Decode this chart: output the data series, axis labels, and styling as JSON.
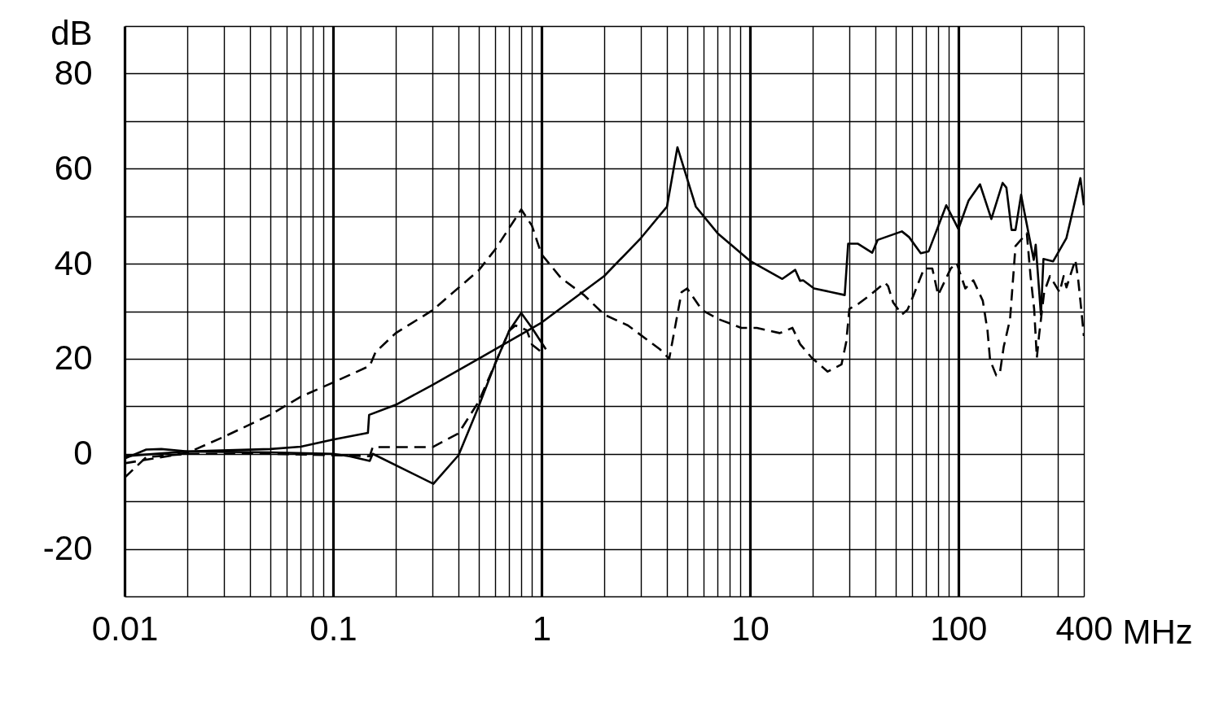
{
  "chart_data": {
    "type": "line",
    "ylabel": "dB",
    "xlabel": "MHz",
    "log": "x",
    "grid": true,
    "marker": "none",
    "xlim": [
      0.01,
      400
    ],
    "ylim": [
      -30,
      90
    ],
    "xticks": [
      0.01,
      {
        "value": 0.02,
        "label": null
      },
      {
        "value": 0.03,
        "label": null
      },
      {
        "value": 0.04,
        "label": null
      },
      {
        "value": 0.05,
        "label": null
      },
      {
        "value": 0.06,
        "label": null
      },
      {
        "value": 0.07,
        "label": null
      },
      {
        "value": 0.08,
        "label": null
      },
      {
        "value": 0.09,
        "label": null
      },
      0.1,
      {
        "value": 0.2,
        "label": null
      },
      {
        "value": 0.3,
        "label": null
      },
      {
        "value": 0.4,
        "label": null
      },
      {
        "value": 0.5,
        "label": null
      },
      {
        "value": 0.6,
        "label": null
      },
      {
        "value": 0.7,
        "label": null
      },
      {
        "value": 0.8,
        "label": null
      },
      {
        "value": 0.9,
        "label": null
      },
      1,
      {
        "value": 2,
        "label": null
      },
      {
        "value": 3,
        "label": null
      },
      {
        "value": 4,
        "label": null
      },
      {
        "value": 5,
        "label": null
      },
      {
        "value": 6,
        "label": null
      },
      {
        "value": 7,
        "label": null
      },
      {
        "value": 8,
        "label": null
      },
      {
        "value": 9,
        "label": null
      },
      10,
      {
        "value": 20,
        "label": null
      },
      {
        "value": 30,
        "label": null
      },
      {
        "value": 40,
        "label": null
      },
      {
        "value": 50,
        "label": null
      },
      {
        "value": 60,
        "label": null
      },
      {
        "value": 70,
        "label": null
      },
      {
        "value": 80,
        "label": null
      },
      {
        "value": 90,
        "label": null
      },
      100,
      {
        "value": 200,
        "label": null
      },
      {
        "value": 300,
        "label": null
      },
      400
    ],
    "yticks": [
      {
        "value": -30,
        "label": null
      },
      -20,
      {
        "value": -10,
        "label": null
      },
      0,
      {
        "value": 10,
        "label": null
      },
      20,
      {
        "value": 30,
        "label": null
      },
      40,
      {
        "value": 50,
        "label": null
      },
      60,
      {
        "value": 70,
        "label": null
      },
      80,
      {
        "value": 90,
        "label": null
      }
    ],
    "series": [
      {
        "color": "#000000",
        "line_style": "solid",
        "x": [
          0.01,
          0.02,
          0.05,
          0.07,
          0.1,
          0.147,
          0.149,
          0.2,
          0.3,
          0.5,
          1,
          2,
          3,
          4,
          4.49,
          5.5,
          7,
          10,
          14.3,
          16.5,
          17.4,
          18,
          20.3,
          28.5,
          29.6,
          33,
          38.6,
          41,
          53.6,
          58,
          66,
          72,
          87.5,
          100,
          112,
          127,
          144,
          163,
          170,
          180,
          188,
          200,
          205,
          230,
          235,
          249,
          256,
          285,
          330,
          385,
          400
        ],
        "values": [
          -0.5,
          0.5,
          1,
          1.5,
          3,
          4.4,
          8.2,
          10.3,
          14.5,
          20,
          27.6,
          37.4,
          45.4,
          52,
          64.5,
          52,
          46.4,
          40.6,
          36.8,
          38.7,
          36.4,
          36.5,
          34.8,
          33.4,
          44.2,
          44.2,
          42.3,
          45,
          46.8,
          45.6,
          42.2,
          42.6,
          52.3,
          47.3,
          53.3,
          56.7,
          49.4,
          57,
          56,
          47.1,
          47.1,
          54.5,
          52,
          40.8,
          44,
          29.3,
          41,
          40.5,
          45.4,
          58,
          52.3
        ]
      },
      {
        "color": "#000000",
        "line_style": "dashed",
        "x": [
          0.01,
          0.02,
          0.03,
          0.05,
          0.07,
          0.1,
          0.15,
          0.16,
          0.2,
          0.3,
          0.5,
          0.6,
          0.8,
          0.9,
          1,
          1.24,
          1.6,
          2,
          2.6,
          3.7,
          4.1,
          4.7,
          5,
          5.9,
          7.1,
          9.1,
          10.8,
          13.9,
          16,
          17.4,
          19.8,
          23.6,
          27.5,
          29,
          30,
          33,
          37.7,
          44.5,
          46,
          48.6,
          53.6,
          57,
          61,
          68.5,
          75,
          80,
          92,
          98,
          108,
          118,
          131,
          138,
          142,
          152,
          158,
          165,
          177,
          188,
          213,
          222,
          231,
          238,
          244,
          258,
          275,
          306,
          320,
          330,
          364,
          375,
          385,
          400
        ],
        "values": [
          -2,
          0.2,
          3.6,
          8.2,
          12,
          15,
          18.5,
          21.4,
          25.4,
          30.2,
          38.6,
          43,
          51.4,
          48,
          42,
          37,
          33.4,
          29.3,
          27,
          22,
          20,
          34,
          34.8,
          30.2,
          28.3,
          26.5,
          26.5,
          25.4,
          26.5,
          23.1,
          20.2,
          17.3,
          18.8,
          23.6,
          30.5,
          31.5,
          33.4,
          36,
          35.3,
          31.9,
          29.3,
          30.3,
          33.4,
          39,
          39,
          33.4,
          39,
          40.2,
          34.8,
          36.5,
          32.2,
          25.9,
          19.7,
          16.5,
          16.8,
          22.5,
          28.3,
          43.7,
          46.4,
          37.4,
          30.5,
          20.2,
          25,
          34,
          37.4,
          34,
          37.4,
          35,
          40.8,
          37,
          32.2,
          24.8
        ]
      },
      {
        "color": "#000000",
        "line_style": "solid",
        "x": [
          0.01,
          0.0127,
          0.015,
          0.02,
          0.05,
          0.1,
          0.12,
          0.15,
          0.155,
          0.303,
          0.4,
          0.5,
          0.6,
          0.7,
          0.8,
          0.9,
          1.05
        ],
        "values": [
          -1,
          0.9,
          1,
          0.5,
          0.3,
          0,
          -0.5,
          -1.5,
          0,
          -6.3,
          -0.3,
          10,
          19,
          25.9,
          29.6,
          26.5,
          22
        ]
      },
      {
        "color": "#000000",
        "line_style": "dashed",
        "x": [
          0.01,
          0.0127,
          0.02,
          0.05,
          0.1,
          0.15,
          0.155,
          0.2,
          0.3,
          0.4,
          0.5,
          0.6,
          0.7,
          0.75,
          0.85,
          0.9,
          1.0
        ],
        "values": [
          -5,
          -0.7,
          0,
          0,
          -0.3,
          -0.5,
          1.4,
          1.4,
          1.4,
          4.3,
          11,
          19,
          25.9,
          27,
          26,
          23,
          21.4
        ]
      }
    ]
  }
}
